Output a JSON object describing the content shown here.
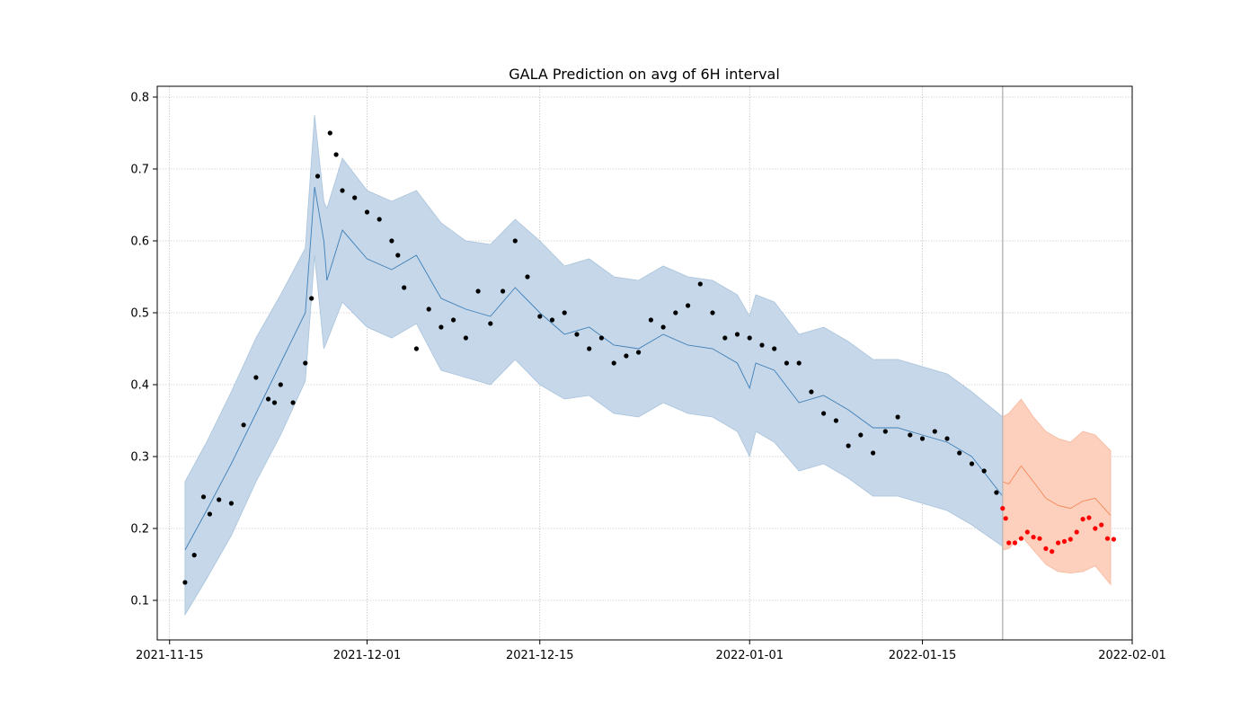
{
  "chart_data": {
    "type": "scatter",
    "title": "GALA Prediction on avg of 6H interval",
    "xlabel": "",
    "ylabel": "",
    "x_range": [
      "2021-11-14",
      "2022-02-01"
    ],
    "ylim": [
      0.045,
      0.815
    ],
    "x_ticks": [
      "2021-11-15",
      "2021-12-01",
      "2021-12-15",
      "2022-01-01",
      "2022-01-15",
      "2022-02-01"
    ],
    "y_ticks": [
      0.1,
      0.2,
      0.3,
      0.4,
      0.5,
      0.6,
      0.7,
      0.8
    ],
    "grid": true,
    "forecast_start": "2022-01-21T12:00",
    "colors": {
      "observed_points": "#000000",
      "test_points": "#ff0000",
      "fit_line": "#3f7fb8",
      "fit_band": "#c5d7e8",
      "forecast_line": "#f08a5a",
      "forecast_band": "#fdd0bd",
      "forecast_divider": "#bbbbbb",
      "grid": "#b0b0b0"
    },
    "observed": {
      "x": [
        "2021-11-16T06:00",
        "2021-11-17T00:00",
        "2021-11-17T18:00",
        "2021-11-18T06:00",
        "2021-11-19T00:00",
        "2021-11-20T00:00",
        "2021-11-21T00:00",
        "2021-11-22T00:00",
        "2021-11-23T00:00",
        "2021-11-23T12:00",
        "2021-11-24T00:00",
        "2021-11-25T00:00",
        "2021-11-26T00:00",
        "2021-11-26T12:00",
        "2021-11-27T00:00",
        "2021-11-28T00:00",
        "2021-11-28T12:00",
        "2021-11-29T00:00",
        "2021-11-30T00:00",
        "2021-12-01T00:00",
        "2021-12-02T00:00",
        "2021-12-03T00:00",
        "2021-12-03T12:00",
        "2021-12-04T00:00",
        "2021-12-05T00:00",
        "2021-12-06T00:00",
        "2021-12-07T00:00",
        "2021-12-08T00:00",
        "2021-12-09T00:00",
        "2021-12-10T00:00",
        "2021-12-11T00:00",
        "2021-12-12T00:00",
        "2021-12-13T00:00",
        "2021-12-14T00:00",
        "2021-12-15T00:00",
        "2021-12-16T00:00",
        "2021-12-17T00:00",
        "2021-12-18T00:00",
        "2021-12-19T00:00",
        "2021-12-20T00:00",
        "2021-12-21T00:00",
        "2021-12-22T00:00",
        "2021-12-23T00:00",
        "2021-12-24T00:00",
        "2021-12-25T00:00",
        "2021-12-26T00:00",
        "2021-12-27T00:00",
        "2021-12-28T00:00",
        "2021-12-29T00:00",
        "2021-12-30T00:00",
        "2021-12-31T00:00",
        "2022-01-01T00:00",
        "2022-01-02T00:00",
        "2022-01-03T00:00",
        "2022-01-04T00:00",
        "2022-01-05T00:00",
        "2022-01-06T00:00",
        "2022-01-07T00:00",
        "2022-01-08T00:00",
        "2022-01-09T00:00",
        "2022-01-10T00:00",
        "2022-01-11T00:00",
        "2022-01-12T00:00",
        "2022-01-13T00:00",
        "2022-01-14T00:00",
        "2022-01-15T00:00",
        "2022-01-16T00:00",
        "2022-01-17T00:00",
        "2022-01-18T00:00",
        "2022-01-19T00:00",
        "2022-01-20T00:00",
        "2022-01-21T00:00"
      ],
      "y": [
        0.125,
        0.163,
        0.244,
        0.22,
        0.24,
        0.235,
        0.344,
        0.41,
        0.38,
        0.375,
        0.4,
        0.375,
        0.43,
        0.52,
        0.69,
        0.75,
        0.72,
        0.67,
        0.66,
        0.64,
        0.63,
        0.6,
        0.58,
        0.535,
        0.45,
        0.505,
        0.48,
        0.49,
        0.465,
        0.53,
        0.485,
        0.53,
        0.6,
        0.55,
        0.495,
        0.49,
        0.5,
        0.47,
        0.45,
        0.465,
        0.43,
        0.44,
        0.445,
        0.49,
        0.48,
        0.5,
        0.51,
        0.54,
        0.5,
        0.465,
        0.47,
        0.465,
        0.455,
        0.45,
        0.43,
        0.43,
        0.39,
        0.36,
        0.35,
        0.315,
        0.33,
        0.305,
        0.335,
        0.355,
        0.33,
        0.325,
        0.335,
        0.325,
        0.305,
        0.29,
        0.28,
        0.25
      ]
    },
    "test": {
      "x": [
        "2022-01-21T12:00",
        "2022-01-21T18:00",
        "2022-01-22T00:00",
        "2022-01-22T12:00",
        "2022-01-23T00:00",
        "2022-01-23T12:00",
        "2022-01-24T00:00",
        "2022-01-24T12:00",
        "2022-01-25T00:00",
        "2022-01-25T12:00",
        "2022-01-26T00:00",
        "2022-01-26T12:00",
        "2022-01-27T00:00",
        "2022-01-27T12:00",
        "2022-01-28T00:00",
        "2022-01-28T12:00",
        "2022-01-29T00:00",
        "2022-01-29T12:00",
        "2022-01-30T00:00",
        "2022-01-30T12:00"
      ],
      "y": [
        0.228,
        0.214,
        0.18,
        0.18,
        0.186,
        0.195,
        0.188,
        0.186,
        0.172,
        0.168,
        0.18,
        0.182,
        0.185,
        0.195,
        0.213,
        0.215,
        0.2,
        0.205,
        0.186,
        0.185
      ]
    },
    "fit": {
      "x": [
        "2021-11-16T06:00",
        "2021-11-18T00:00",
        "2021-11-20T00:00",
        "2021-11-22T00:00",
        "2021-11-24T00:00",
        "2021-11-26T00:00",
        "2021-11-26T18:00",
        "2021-11-27T12:00",
        "2021-11-27T18:00",
        "2021-11-29T00:00",
        "2021-12-01T00:00",
        "2021-12-03T00:00",
        "2021-12-05T00:00",
        "2021-12-07T00:00",
        "2021-12-09T00:00",
        "2021-12-11T00:00",
        "2021-12-13T00:00",
        "2021-12-15T00:00",
        "2021-12-17T00:00",
        "2021-12-19T00:00",
        "2021-12-21T00:00",
        "2021-12-23T00:00",
        "2021-12-25T00:00",
        "2021-12-27T00:00",
        "2021-12-29T00:00",
        "2021-12-31T00:00",
        "2022-01-01T00:00",
        "2022-01-01T12:00",
        "2022-01-03T00:00",
        "2022-01-05T00:00",
        "2022-01-07T00:00",
        "2022-01-09T00:00",
        "2022-01-11T00:00",
        "2022-01-13T00:00",
        "2022-01-15T00:00",
        "2022-01-17T00:00",
        "2022-01-19T00:00",
        "2022-01-21T12:00"
      ],
      "y": [
        0.17,
        0.225,
        0.29,
        0.36,
        0.43,
        0.5,
        0.675,
        0.6,
        0.545,
        0.615,
        0.575,
        0.56,
        0.58,
        0.52,
        0.505,
        0.495,
        0.535,
        0.5,
        0.47,
        0.48,
        0.455,
        0.45,
        0.47,
        0.455,
        0.45,
        0.43,
        0.395,
        0.43,
        0.42,
        0.375,
        0.385,
        0.365,
        0.34,
        0.34,
        0.33,
        0.32,
        0.3,
        0.245
      ]
    },
    "fit_band": {
      "upper": [
        0.265,
        0.32,
        0.39,
        0.465,
        0.525,
        0.59,
        0.775,
        0.655,
        0.645,
        0.715,
        0.67,
        0.655,
        0.67,
        0.625,
        0.6,
        0.595,
        0.63,
        0.6,
        0.565,
        0.575,
        0.55,
        0.545,
        0.565,
        0.55,
        0.545,
        0.525,
        0.495,
        0.525,
        0.515,
        0.47,
        0.48,
        0.46,
        0.435,
        0.435,
        0.425,
        0.415,
        0.39,
        0.355
      ],
      "lower": [
        0.08,
        0.13,
        0.19,
        0.265,
        0.33,
        0.405,
        0.58,
        0.45,
        0.46,
        0.515,
        0.48,
        0.465,
        0.485,
        0.42,
        0.41,
        0.4,
        0.435,
        0.4,
        0.38,
        0.385,
        0.36,
        0.355,
        0.375,
        0.36,
        0.355,
        0.335,
        0.3,
        0.335,
        0.32,
        0.28,
        0.29,
        0.27,
        0.245,
        0.245,
        0.235,
        0.225,
        0.205,
        0.175
      ]
    },
    "forecast": {
      "x": [
        "2022-01-21T12:00",
        "2022-01-22T00:00",
        "2022-01-23T00:00",
        "2022-01-24T00:00",
        "2022-01-25T00:00",
        "2022-01-26T00:00",
        "2022-01-27T00:00",
        "2022-01-28T00:00",
        "2022-01-29T00:00",
        "2022-01-30T06:00"
      ],
      "y": [
        0.265,
        0.262,
        0.287,
        0.265,
        0.242,
        0.232,
        0.228,
        0.238,
        0.242,
        0.218
      ],
      "upper": [
        0.355,
        0.36,
        0.38,
        0.355,
        0.335,
        0.325,
        0.32,
        0.335,
        0.33,
        0.308
      ],
      "lower": [
        0.17,
        0.172,
        0.19,
        0.17,
        0.15,
        0.14,
        0.138,
        0.14,
        0.148,
        0.122
      ]
    }
  }
}
